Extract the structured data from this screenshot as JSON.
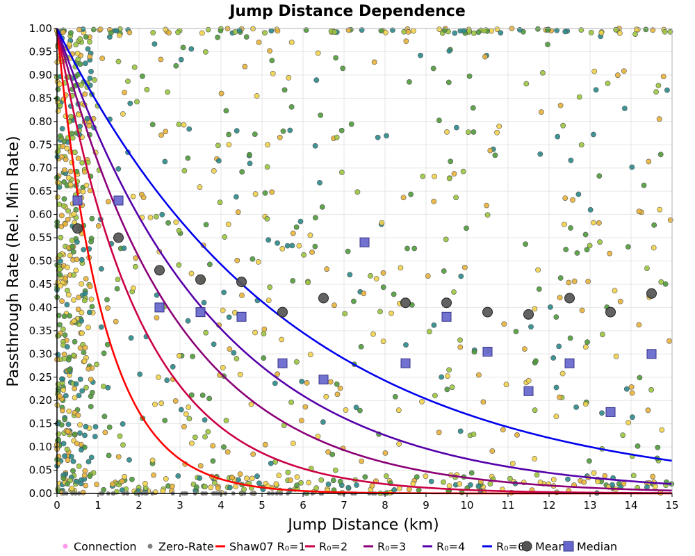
{
  "chart_data": {
    "type": "scatter",
    "title": "Jump Distance Dependence",
    "xlabel": "Jump Distance (km)",
    "ylabel": "Passthrough Rate (Rel. Min Rate)",
    "xlim": [
      0,
      15
    ],
    "ylim": [
      0,
      1
    ],
    "x_ticks": [
      "0",
      "1",
      "2",
      "3",
      "4",
      "5",
      "6",
      "7",
      "8",
      "9",
      "10",
      "11",
      "12",
      "13",
      "14",
      "15"
    ],
    "y_ticks": [
      "0.00",
      "0.05",
      "0.10",
      "0.15",
      "0.20",
      "0.25",
      "0.30",
      "0.35",
      "0.40",
      "0.45",
      "0.50",
      "0.55",
      "0.60",
      "0.65",
      "0.70",
      "0.75",
      "0.80",
      "0.85",
      "0.90",
      "0.95",
      "1.00"
    ],
    "grid": true,
    "legend": [
      {
        "label": "Connection",
        "kind": "dot",
        "color": "#ff99ee"
      },
      {
        "label": "Zero-Rate",
        "kind": "dot",
        "color": "#808080"
      },
      {
        "label": "Shaw07 R₀=1",
        "kind": "line",
        "color": "#ff0000"
      },
      {
        "label": "R₀=2",
        "kind": "line",
        "color": "#cc0044"
      },
      {
        "label": "R₀=3",
        "kind": "line",
        "color": "#8b0077"
      },
      {
        "label": "R₀=4",
        "kind": "line",
        "color": "#5500aa"
      },
      {
        "label": "R₀=6",
        "kind": "line",
        "color": "#0000ee"
      },
      {
        "label": "Mean",
        "kind": "circle",
        "color": "#555555"
      },
      {
        "label": "Median",
        "kind": "square",
        "color": "#6666cc"
      }
    ],
    "curves": [
      {
        "name": "Shaw07 R₀=1",
        "R0": 1,
        "color": "#ff0000"
      },
      {
        "name": "R₀=2",
        "R0": 2,
        "color": "#cc0044"
      },
      {
        "name": "R₀=3",
        "R0": 3,
        "color": "#8b0077"
      },
      {
        "name": "R₀=4",
        "R0": 4,
        "color": "#5500aa"
      },
      {
        "name": "R₀=6",
        "R0": 6,
        "color": "#0000ee"
      }
    ],
    "mean": {
      "x": [
        0.5,
        1.5,
        2.5,
        3.5,
        4.5,
        5.5,
        6.5,
        8.5,
        9.5,
        10.5,
        11.5,
        12.5,
        13.5,
        14.5
      ],
      "y": [
        0.57,
        0.55,
        0.48,
        0.46,
        0.455,
        0.39,
        0.42,
        0.41,
        0.41,
        0.39,
        0.385,
        0.42,
        0.39,
        0.43
      ]
    },
    "median": {
      "x": [
        0.5,
        1.5,
        2.5,
        3.5,
        4.5,
        5.5,
        6.5,
        7.5,
        8.5,
        9.5,
        10.5,
        11.5,
        12.5,
        13.5,
        14.5
      ],
      "y": [
        0.63,
        0.63,
        0.4,
        0.39,
        0.38,
        0.28,
        0.245,
        0.54,
        0.28,
        0.38,
        0.305,
        0.22,
        0.28,
        0.175,
        0.3
      ]
    },
    "connections": {
      "count": 1200,
      "note": "scattered yellow/green/teal points across the plot; dense near x=0 and along y=0 and y=1",
      "colors": [
        "#f2d34a",
        "#9bc53d",
        "#4f9a3a",
        "#e8b33a",
        "#2a8a8a"
      ]
    },
    "zero_rate": {
      "count": 60,
      "color": "#808080",
      "note": "gray points along y=0"
    }
  }
}
